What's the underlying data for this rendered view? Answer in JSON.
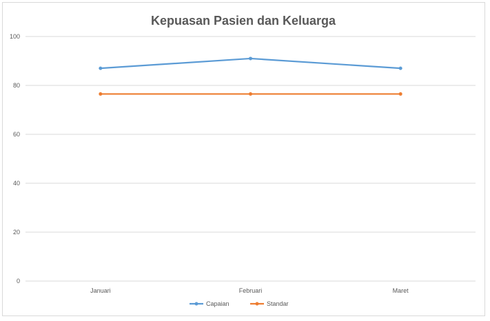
{
  "chart_data": {
    "type": "line",
    "title": "Kepuasan Pasien dan Keluarga",
    "xlabel": "",
    "ylabel": "",
    "categories": [
      "Januari",
      "Februari",
      "Maret"
    ],
    "ylim": [
      0,
      100
    ],
    "yticks": [
      0,
      20,
      40,
      60,
      80,
      100
    ],
    "grid": true,
    "legend_position": "bottom",
    "series": [
      {
        "name": "Capaian",
        "values": [
          87,
          91,
          87
        ],
        "color": "#5b9bd5"
      },
      {
        "name": "Standar",
        "values": [
          76.5,
          76.5,
          76.5
        ],
        "color": "#ed7d31"
      }
    ]
  }
}
